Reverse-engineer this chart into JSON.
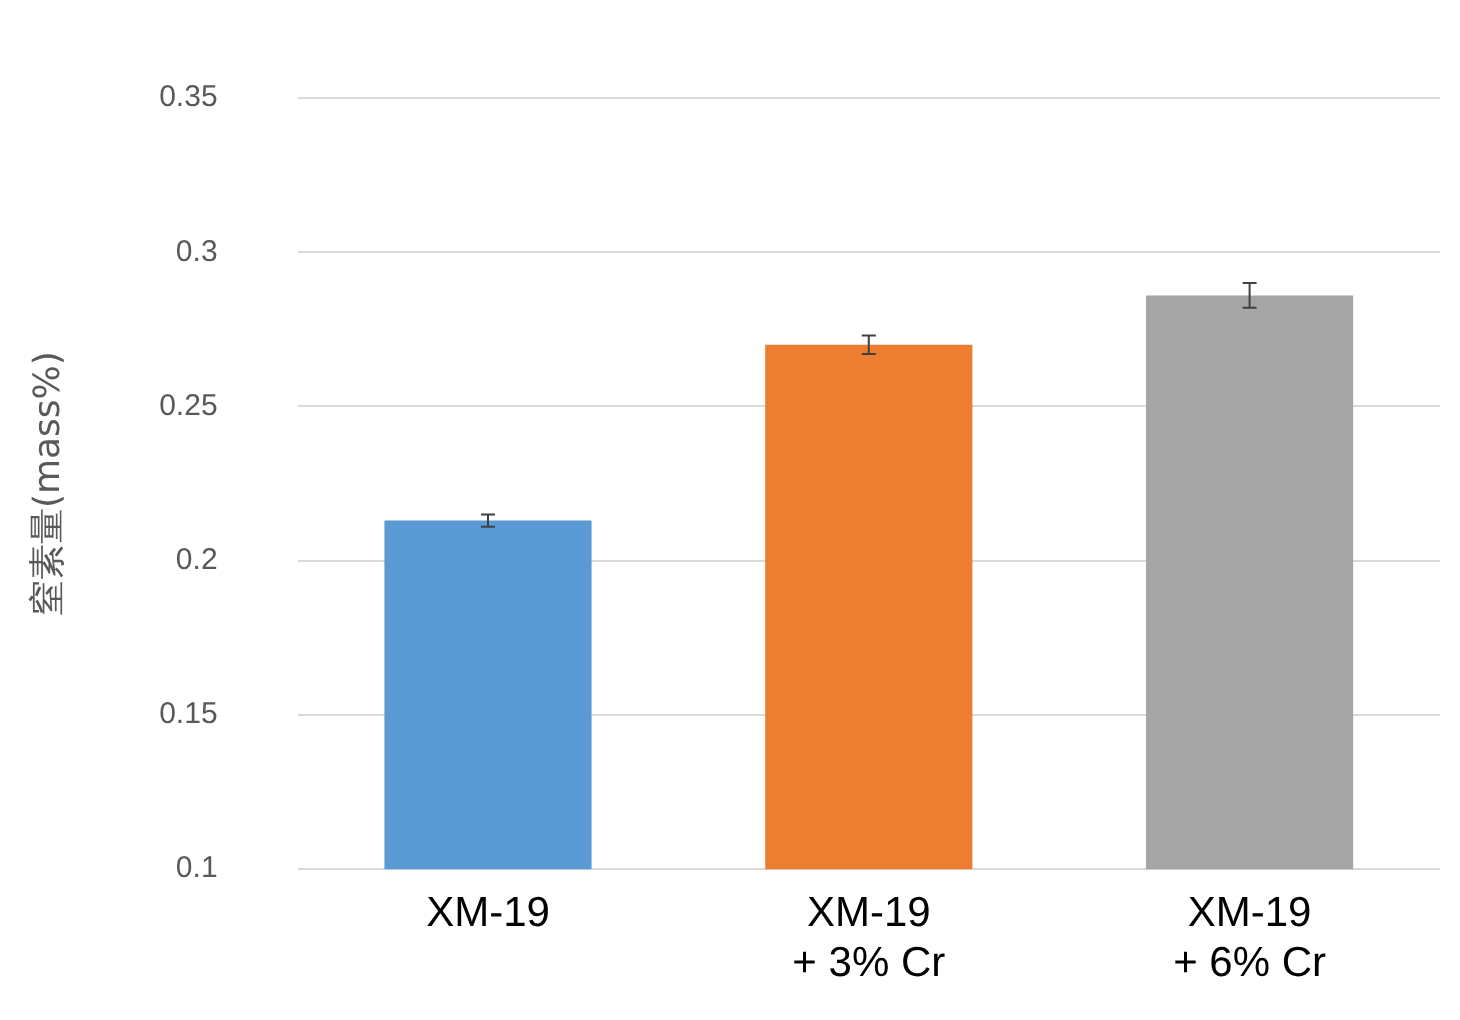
{
  "chart_data": {
    "type": "bar",
    "ylabel": "窒素量(mass%)",
    "categories": [
      "XM-19",
      "XM-19\n+ 3% Cr",
      "XM-19\n+ 6% Cr"
    ],
    "values": [
      0.213,
      0.27,
      0.286
    ],
    "colors": [
      "#5b9bd5",
      "#ed7d31",
      "#a5a5a5"
    ],
    "errors": [
      0.002,
      0.003,
      0.004
    ],
    "ylim": [
      0.1,
      0.35
    ],
    "yticks": [
      0.1,
      0.15,
      0.2,
      0.25,
      0.3,
      0.35
    ],
    "grid": "y",
    "legend": false
  }
}
